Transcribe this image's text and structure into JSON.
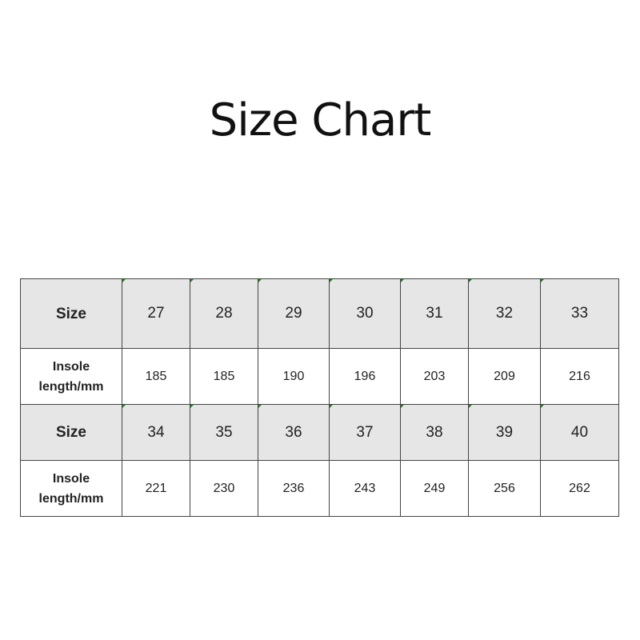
{
  "title": "Size Chart",
  "table": {
    "size_label": "Size",
    "length_label": "Insole length/mm",
    "rows": [
      {
        "sizes": [
          "27",
          "28",
          "29",
          "30",
          "31",
          "32",
          "33"
        ],
        "lengths": [
          "185",
          "185",
          "190",
          "196",
          "203",
          "209",
          "216"
        ]
      },
      {
        "sizes": [
          "34",
          "35",
          "36",
          "37",
          "38",
          "39",
          "40"
        ],
        "lengths": [
          "221",
          "230",
          "236",
          "243",
          "249",
          "256",
          "262"
        ]
      }
    ]
  }
}
